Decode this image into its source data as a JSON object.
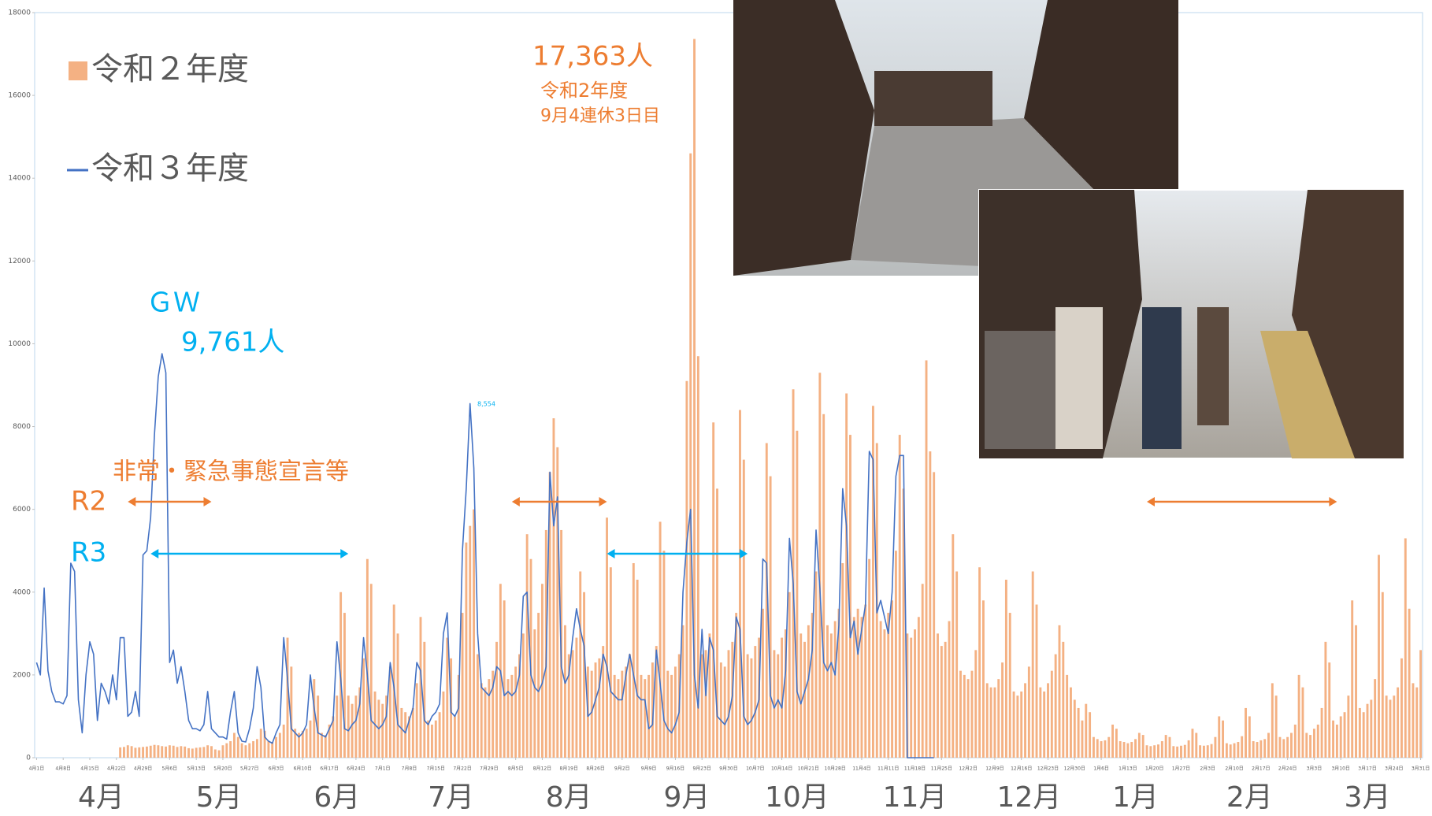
{
  "chart_data": {
    "type": "bar_line",
    "series": [
      {
        "name": "令和２年度",
        "color": "#f4b183",
        "type": "bar",
        "values": [
          null,
          null,
          null,
          null,
          null,
          null,
          null,
          null,
          null,
          null,
          null,
          null,
          null,
          null,
          null,
          null,
          null,
          null,
          null,
          null,
          null,
          null,
          250,
          260,
          300,
          280,
          240,
          250,
          260,
          270,
          290,
          310,
          300,
          280,
          270,
          300,
          290,
          260,
          280,
          270,
          230,
          220,
          240,
          250,
          260,
          300,
          280,
          200,
          180,
          300,
          350,
          400,
          600,
          500,
          350,
          300,
          350,
          400,
          450,
          700,
          650,
          400,
          380,
          500,
          600,
          800,
          2900,
          2200,
          700,
          600,
          650,
          700,
          900,
          1900,
          1500,
          600,
          550,
          800,
          1000,
          1500,
          4000,
          3500,
          1500,
          1300,
          1500,
          1700,
          2400,
          4800,
          4200,
          1600,
          1400,
          1300,
          1500,
          2200,
          3700,
          3000,
          1200,
          1100,
          1000,
          1200,
          1800,
          3400,
          2800,
          900,
          800,
          900,
          1100,
          1600,
          2900,
          2400,
          1000,
          2000,
          3500,
          5200,
          5600,
          6000,
          2500,
          1800,
          1700,
          1900,
          2100,
          2800,
          4200,
          3800,
          1900,
          2000,
          2200,
          2500,
          3000,
          5400,
          4800,
          3100,
          3500,
          4200,
          5500,
          6900,
          8200,
          7500,
          5500,
          3200,
          2500,
          2600,
          2900,
          4500,
          4000,
          2200,
          2100,
          2300,
          2400,
          2700,
          5800,
          4600,
          2000,
          1900,
          2100,
          2200,
          2500,
          4700,
          4300,
          2000,
          1900,
          2000,
          2300,
          2700,
          5700,
          5000,
          2100,
          2000,
          2200,
          2500,
          3200,
          9100,
          14600,
          17363,
          9700,
          2500,
          2600,
          3000,
          8100,
          6500,
          2300,
          2200,
          2600,
          2800,
          3500,
          8400,
          7200,
          2500,
          2400,
          2700,
          2900,
          3600,
          7600,
          6800,
          2600,
          2500,
          2900,
          3100,
          4000,
          8900,
          7900,
          3000,
          2800,
          3200,
          3500,
          4500,
          9300,
          8300,
          3200,
          3000,
          3300,
          3600,
          4700,
          8800,
          7800,
          3400,
          3600,
          3400,
          3700,
          4800,
          8500,
          7600,
          3300,
          3100,
          3500,
          3800,
          5000,
          7800,
          6500,
          3000,
          2900,
          3100,
          3400,
          4200,
          9600,
          7400,
          6900,
          3000,
          2700,
          2800,
          3300,
          5400,
          4500,
          2100,
          2000,
          1900,
          2100,
          2600,
          4600,
          3800,
          1800,
          1700,
          1700,
          1900,
          2300,
          4300,
          3500,
          1600,
          1500,
          1600,
          1800,
          2200,
          4500,
          3700,
          1700,
          1600,
          1800,
          2100,
          2500,
          3200,
          2800,
          2000,
          1700,
          1400,
          1200,
          900,
          1300,
          1100,
          500,
          450,
          400,
          420,
          500,
          800,
          700,
          400,
          380,
          350,
          380,
          450,
          600,
          550,
          300,
          280,
          300,
          320,
          400,
          550,
          500,
          280,
          270,
          290,
          310,
          420,
          700,
          600,
          300,
          290,
          300,
          330,
          500,
          1000,
          900,
          350,
          320,
          350,
          380,
          520,
          1200,
          1000,
          400,
          380,
          420,
          450,
          600,
          1800,
          1500,
          500,
          450,
          500,
          600,
          800,
          2000,
          1700,
          600,
          550,
          700,
          800,
          1200,
          2800,
          2300,
          900,
          800,
          1000,
          1100,
          1500,
          3800,
          3200,
          1200,
          1100,
          1300,
          1400,
          1900,
          4900,
          4000,
          1500,
          1400,
          1500,
          1700,
          2400,
          5300,
          3600,
          1800,
          1700,
          2600
        ]
      },
      {
        "name": "令和３年度",
        "color": "#4472c4",
        "type": "line",
        "values": [
          2300,
          2000,
          4100,
          2100,
          1600,
          1350,
          1350,
          1300,
          1500,
          4700,
          4500,
          1400,
          600,
          2000,
          2800,
          2500,
          900,
          1800,
          1600,
          1300,
          2000,
          1400,
          2900,
          2900,
          1000,
          1100,
          1600,
          1000,
          4900,
          5000,
          5800,
          7800,
          9200,
          9761,
          9300,
          2300,
          2600,
          1800,
          2200,
          1600,
          900,
          700,
          700,
          650,
          800,
          1600,
          700,
          600,
          500,
          500,
          450,
          1100,
          1600,
          600,
          400,
          380,
          700,
          1200,
          2200,
          1700,
          500,
          400,
          350,
          600,
          800,
          2900,
          1900,
          700,
          600,
          500,
          600,
          800,
          2000,
          1200,
          600,
          550,
          500,
          700,
          900,
          2800,
          1900,
          700,
          650,
          800,
          900,
          1300,
          2900,
          2000,
          900,
          800,
          700,
          800,
          1000,
          2300,
          1700,
          800,
          700,
          600,
          900,
          1200,
          2300,
          2100,
          900,
          800,
          1000,
          1100,
          1300,
          3000,
          3500,
          1100,
          1000,
          1200,
          5000,
          6500,
          8554,
          7000,
          3000,
          1700,
          1600,
          1500,
          1700,
          2200,
          2100,
          1500,
          1600,
          1500,
          1600,
          2000,
          3900,
          4000,
          2000,
          1700,
          1600,
          1800,
          2200,
          6900,
          5600,
          6300,
          2200,
          1800,
          2000,
          2900,
          3600,
          3100,
          2700,
          1000,
          1100,
          1400,
          1700,
          2500,
          2200,
          1600,
          1500,
          1400,
          1400,
          2000,
          2500,
          2000,
          1500,
          1400,
          1400,
          700,
          800,
          2600,
          1800,
          900,
          700,
          600,
          800,
          1100,
          4000,
          5200,
          6000,
          2000,
          1200,
          3100,
          1500,
          2900,
          2600,
          1000,
          900,
          800,
          1000,
          1500,
          3400,
          3100,
          1000,
          800,
          900,
          1100,
          1400,
          4800,
          4700,
          1500,
          1200,
          1400,
          1200,
          2100,
          5300,
          4200,
          1600,
          1300,
          1600,
          1900,
          2600,
          5500,
          4100,
          2300,
          2100,
          2300,
          2000,
          3200,
          6500,
          5600,
          2900,
          3300,
          2500,
          3100,
          3700,
          7400,
          7200,
          3500,
          3800,
          3400,
          3000,
          4000,
          6800,
          7300,
          7300,
          0,
          0,
          0,
          0,
          0,
          0,
          0,
          0,
          null,
          null,
          null,
          null,
          null,
          null,
          null,
          null,
          null,
          null,
          null,
          null,
          null,
          null,
          null,
          null,
          null,
          null,
          null,
          null,
          null,
          null,
          null,
          null,
          null,
          null,
          null,
          null,
          null,
          null,
          null,
          null,
          null,
          null,
          null,
          null,
          null,
          null,
          null,
          null,
          null,
          null,
          null,
          null,
          null,
          null,
          null,
          null,
          null,
          null,
          null,
          null,
          null,
          null,
          null,
          null,
          null,
          null,
          null,
          null,
          null,
          null,
          null,
          null,
          null,
          null,
          null,
          null,
          null,
          null,
          null,
          null,
          null,
          null,
          null,
          null,
          null,
          null,
          null,
          null,
          null,
          null,
          null,
          null,
          null,
          null,
          null,
          null,
          null,
          null,
          null,
          null,
          null,
          null,
          null,
          null,
          null,
          null,
          null,
          null,
          null,
          null,
          null,
          null,
          null,
          null,
          null,
          null,
          null,
          null,
          null,
          null,
          null,
          null,
          null,
          null,
          null,
          null,
          null,
          null,
          null,
          null,
          null,
          null,
          null,
          null,
          null,
          null
        ]
      }
    ],
    "xlim": [
      -0.5,
      364.5
    ],
    "xticks": [
      {
        "value": 0,
        "label": "4月1日"
      },
      {
        "value": 7,
        "label": "4月8日"
      },
      {
        "value": 14,
        "label": "4月15日"
      },
      {
        "value": 21,
        "label": "4月22日"
      },
      {
        "value": 28,
        "label": "4月29日"
      },
      {
        "value": 35,
        "label": "5月6日"
      },
      {
        "value": 42,
        "label": "5月13日"
      },
      {
        "value": 49,
        "label": "5月20日"
      },
      {
        "value": 56,
        "label": "5月27日"
      },
      {
        "value": 63,
        "label": "6月3日"
      },
      {
        "value": 70,
        "label": "6月10日"
      },
      {
        "value": 77,
        "label": "6月17日"
      },
      {
        "value": 84,
        "label": "6月24日"
      },
      {
        "value": 91,
        "label": "7月1日"
      },
      {
        "value": 98,
        "label": "7月8日"
      },
      {
        "value": 105,
        "label": "7月15日"
      },
      {
        "value": 112,
        "label": "7月22日"
      },
      {
        "value": 119,
        "label": "7月29日"
      },
      {
        "value": 126,
        "label": "8月5日"
      },
      {
        "value": 133,
        "label": "8月12日"
      },
      {
        "value": 140,
        "label": "8月19日"
      },
      {
        "value": 147,
        "label": "8月26日"
      },
      {
        "value": 154,
        "label": "9月2日"
      },
      {
        "value": 161,
        "label": "9月9日"
      },
      {
        "value": 168,
        "label": "9月16日"
      },
      {
        "value": 175,
        "label": "9月23日"
      },
      {
        "value": 182,
        "label": "9月30日"
      },
      {
        "value": 189,
        "label": "10月7日"
      },
      {
        "value": 196,
        "label": "10月14日"
      },
      {
        "value": 203,
        "label": "10月21日"
      },
      {
        "value": 210,
        "label": "10月28日"
      },
      {
        "value": 217,
        "label": "11月4日"
      },
      {
        "value": 224,
        "label": "11月11日"
      },
      {
        "value": 231,
        "label": "11月18日"
      },
      {
        "value": 238,
        "label": "11月25日"
      },
      {
        "value": 245,
        "label": "12月2日"
      },
      {
        "value": 252,
        "label": "12月9日"
      },
      {
        "value": 259,
        "label": "12月16日"
      },
      {
        "value": 266,
        "label": "12月23日"
      },
      {
        "value": 273,
        "label": "12月30日"
      },
      {
        "value": 280,
        "label": "1月6日"
      },
      {
        "value": 287,
        "label": "1月13日"
      },
      {
        "value": 294,
        "label": "1月20日"
      },
      {
        "value": 301,
        "label": "1月27日"
      },
      {
        "value": 308,
        "label": "2月3日"
      },
      {
        "value": 315,
        "label": "2月10日"
      },
      {
        "value": 322,
        "label": "2月17日"
      },
      {
        "value": 329,
        "label": "2月24日"
      },
      {
        "value": 336,
        "label": "3月3日"
      },
      {
        "value": 343,
        "label": "3月10日"
      },
      {
        "value": 350,
        "label": "3月17日"
      },
      {
        "value": 357,
        "label": "3月24日"
      },
      {
        "value": 364,
        "label": "3月31日"
      }
    ],
    "month_ticks": [
      {
        "value": 17,
        "label": "4月"
      },
      {
        "value": 48,
        "label": "5月"
      },
      {
        "value": 79,
        "label": "6月"
      },
      {
        "value": 109,
        "label": "7月"
      },
      {
        "value": 140,
        "label": "8月"
      },
      {
        "value": 171,
        "label": "9月"
      },
      {
        "value": 200,
        "label": "10月"
      },
      {
        "value": 231,
        "label": "11月"
      },
      {
        "value": 261,
        "label": "12月"
      },
      {
        "value": 289,
        "label": "1月"
      },
      {
        "value": 319,
        "label": "2月"
      },
      {
        "value": 350,
        "label": "3月"
      }
    ],
    "ylim": [
      0,
      18000
    ],
    "yticks": [
      0,
      2000,
      4000,
      6000,
      8000,
      10000,
      12000,
      14000,
      16000,
      18000
    ],
    "annotations": [
      "17,363人",
      "令和2年度",
      "9月4連休3日目",
      "ＧＷ",
      "9,761人",
      "8,554",
      "非常・緊急事態宣言等",
      "R2",
      "R3"
    ],
    "period_arrows": [
      {
        "color": "#ed7d31",
        "ranges": [
          [
            24,
            46
          ],
          [
            125,
            150
          ],
          [
            292,
            342
          ]
        ]
      },
      {
        "color": "#00b0f0",
        "ranges": [
          [
            30,
            82
          ],
          [
            150,
            187
          ]
        ]
      }
    ]
  }
}
